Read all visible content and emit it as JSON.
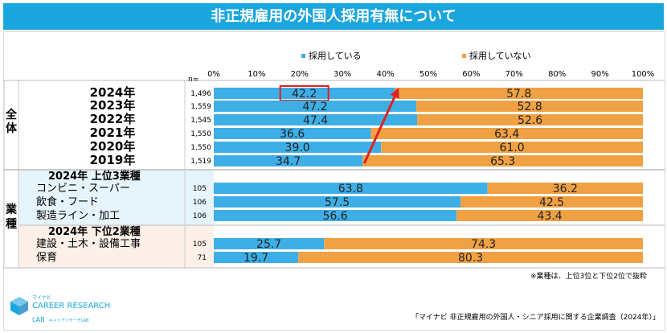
{
  "title": "非正規雇用の外国人採用有無について",
  "n_header": "n=",
  "legend": [
    {
      "label": "採用している",
      "color": "#3eaee6"
    },
    {
      "label": "採用していない",
      "color": "#f0a143"
    }
  ],
  "x_ticks": [
    "0%",
    "10%",
    "20%",
    "30%",
    "40%",
    "50%",
    "60%",
    "70%",
    "80%",
    "90%",
    "100%"
  ],
  "groups": {
    "overall": "全体",
    "industry": "業種",
    "top3": "2024年 上位3業種",
    "bottom2": "2024年 下位2業種"
  },
  "note": "※業種は、上位3位と下位2位で抜粋",
  "source": "「マイナビ 非正規雇用の外国人・シニア採用に関する企業調査（2024年）」",
  "logo": {
    "sub": "マイナビ",
    "main": "CAREER RESEARCH",
    "lab": "LAB",
    "lab_sub": "キャリアリサーチLAB"
  },
  "chart_data": {
    "type": "bar",
    "orientation": "horizontal",
    "stacked": true,
    "percent": true,
    "xlim": [
      0,
      100
    ],
    "series": [
      {
        "name": "採用している",
        "color": "#3eaee6"
      },
      {
        "name": "採用していない",
        "color": "#f0a143"
      }
    ],
    "rows": [
      {
        "label": "2024年",
        "n": "1,496",
        "values": [
          42.2,
          57.8
        ],
        "highlight": true
      },
      {
        "label": "2023年",
        "n": "1,559",
        "values": [
          47.2,
          52.8
        ]
      },
      {
        "label": "2022年",
        "n": "1,545",
        "values": [
          47.4,
          52.6
        ]
      },
      {
        "label": "2021年",
        "n": "1,550",
        "values": [
          36.6,
          63.4
        ]
      },
      {
        "label": "2020年",
        "n": "1,550",
        "values": [
          39.0,
          61.0
        ]
      },
      {
        "label": "2019年",
        "n": "1,519",
        "values": [
          34.7,
          65.3
        ]
      },
      {
        "label": "コンビニ・スーパー",
        "n": "105",
        "values": [
          63.8,
          36.2
        ]
      },
      {
        "label": "飲食・フード",
        "n": "106",
        "values": [
          57.5,
          42.5
        ]
      },
      {
        "label": "製造ライン・加工",
        "n": "106",
        "values": [
          56.6,
          43.4
        ]
      },
      {
        "label": "建設・土木・設備工事",
        "n": "105",
        "values": [
          25.7,
          74.3
        ]
      },
      {
        "label": "保育",
        "n": "71",
        "values": [
          19.7,
          80.3
        ]
      }
    ],
    "trend_arrow": {
      "from": "2019年",
      "to": "2024年"
    }
  }
}
